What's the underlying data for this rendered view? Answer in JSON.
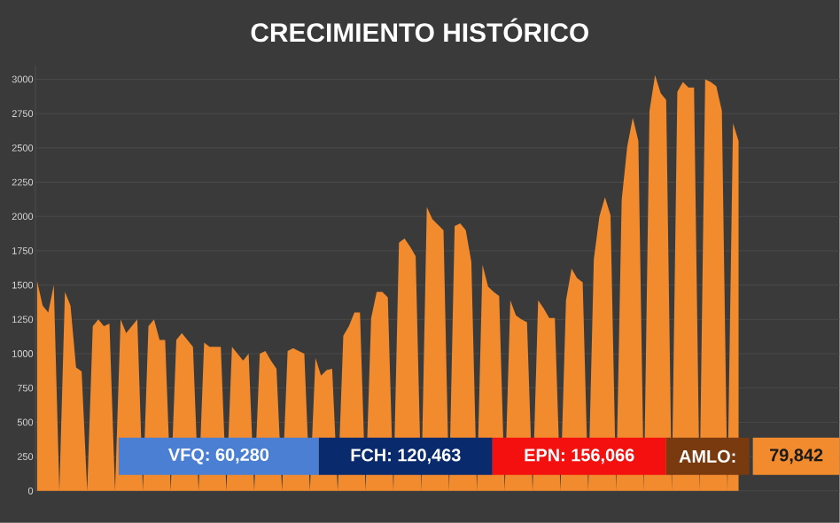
{
  "chart_data": {
    "type": "area",
    "title": "CRECIMIENTO HISTÓRICO",
    "categories": [
      null,
      null,
      null,
      null,
      null,
      null,
      null,
      null,
      null,
      null,
      null,
      null,
      null,
      null,
      null,
      null,
      null,
      null,
      null,
      null,
      null,
      null,
      null,
      null,
      null,
      null,
      null,
      null,
      null,
      null,
      null,
      null,
      null,
      null,
      null,
      null,
      null,
      null,
      null,
      null,
      null,
      null,
      null,
      null,
      null,
      null,
      null,
      null,
      null,
      null,
      null,
      null,
      null,
      null,
      null,
      null,
      null,
      null,
      null,
      null,
      null,
      null,
      null,
      null,
      null,
      null,
      null,
      null,
      null,
      null,
      null,
      null,
      null,
      null,
      null,
      null,
      null,
      null,
      null,
      null,
      null,
      null,
      null,
      null,
      null,
      null,
      null,
      null,
      null,
      null,
      null,
      null,
      null,
      null,
      null,
      null,
      null,
      null,
      null,
      null,
      null,
      null,
      null,
      null,
      null,
      null,
      null,
      null,
      null,
      null,
      null,
      null,
      null,
      null,
      null,
      null,
      null,
      null,
      null,
      null,
      null,
      null,
      null,
      null,
      null,
      null,
      null
    ],
    "color": "#f28a2e",
    "values": [
      1530,
      1350,
      1300,
      1500,
      0,
      1450,
      1350,
      900,
      870,
      0,
      1200,
      1250,
      1200,
      1220,
      0,
      1250,
      1150,
      1200,
      1250,
      0,
      1200,
      1250,
      1100,
      1100,
      0,
      1100,
      1150,
      1100,
      1050,
      0,
      1080,
      1050,
      1050,
      1050,
      0,
      1050,
      1000,
      950,
      1000,
      0,
      1000,
      1020,
      950,
      890,
      0,
      1020,
      1040,
      1020,
      1000,
      0,
      970,
      840,
      880,
      890,
      0,
      1130,
      1200,
      1300,
      1300,
      0,
      1260,
      1450,
      1450,
      1410,
      0,
      1810,
      1840,
      1780,
      1710,
      0,
      2070,
      1980,
      1940,
      1900,
      0,
      1930,
      1950,
      1900,
      1670,
      0,
      1650,
      1490,
      1450,
      1420,
      0,
      1390,
      1280,
      1250,
      1230,
      0,
      1390,
      1330,
      1260,
      1260,
      0,
      1390,
      1620,
      1550,
      1520,
      0,
      1690,
      2000,
      2140,
      2010,
      0,
      2120,
      2510,
      2720,
      2550,
      0,
      2770,
      3030,
      2900,
      2850,
      0,
      2910,
      2980,
      2940,
      2940,
      0,
      3000,
      2980,
      2950,
      2770,
      0,
      2680,
      2550
    ],
    "ylim": [
      0,
      3100
    ],
    "yticks": [
      0,
      250,
      500,
      750,
      1000,
      1250,
      1500,
      1750,
      2000,
      2250,
      2500,
      2750,
      3000
    ],
    "grid": "y",
    "annotations": [
      "VFQ: 60,280",
      "FCH: 120,463",
      "EPN: 156,066",
      "AMLO:",
      "79,842"
    ]
  }
}
